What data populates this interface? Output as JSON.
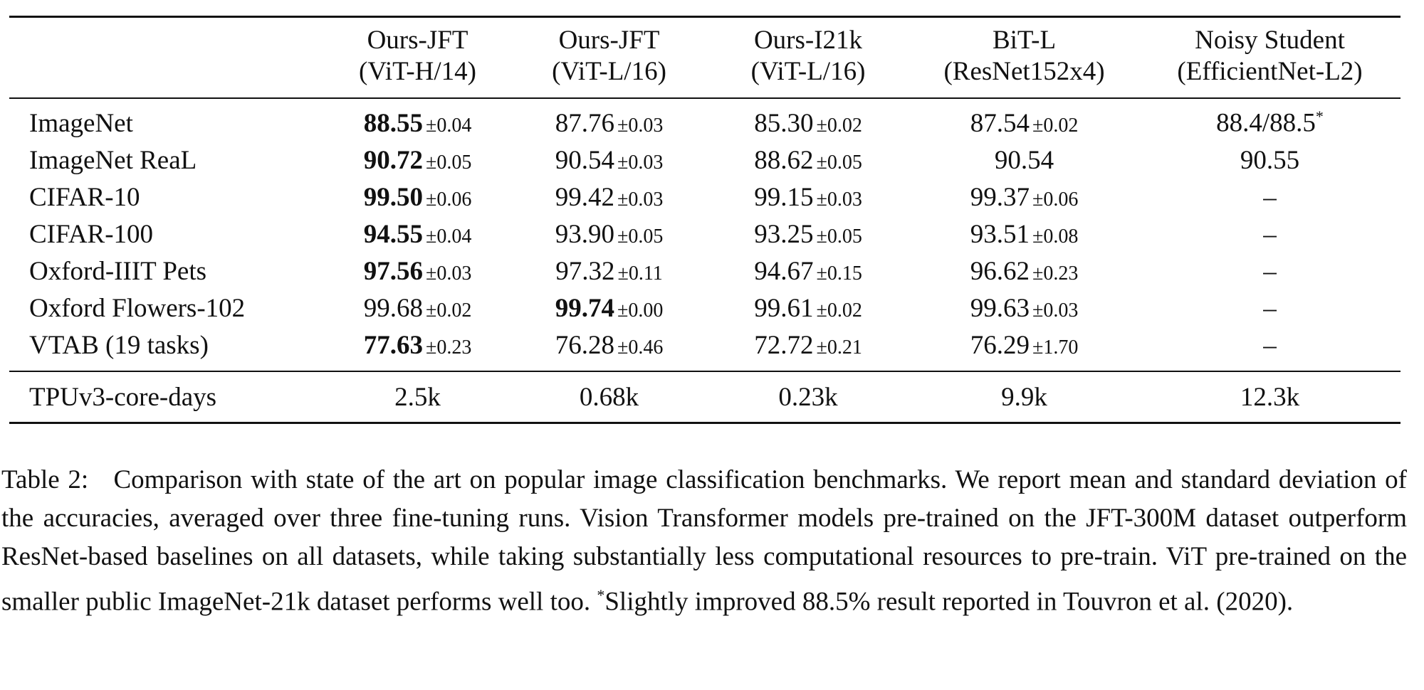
{
  "table": {
    "pm": "±",
    "columns": [
      {
        "line1": "Ours-JFT",
        "line2": "(ViT-H/14)"
      },
      {
        "line1": "Ours-JFT",
        "line2": "(ViT-L/16)"
      },
      {
        "line1": "Ours-I21k",
        "line2": "(ViT-L/16)"
      },
      {
        "line1": "BiT-L",
        "line2": "(ResNet152x4)"
      },
      {
        "line1": "Noisy Student",
        "line2": "(EfficientNet-L2)"
      }
    ],
    "rows": [
      {
        "label": "ImageNet",
        "cells": [
          {
            "mean": "88.55",
            "std": "0.04",
            "bold": true
          },
          {
            "mean": "87.76",
            "std": "0.03"
          },
          {
            "mean": "85.30",
            "std": "0.02"
          },
          {
            "mean": "87.54",
            "std": "0.02"
          },
          {
            "mean": "88.4/88.5",
            "note": "*"
          }
        ]
      },
      {
        "label": "ImageNet ReaL",
        "cells": [
          {
            "mean": "90.72",
            "std": "0.05",
            "bold": true
          },
          {
            "mean": "90.54",
            "std": "0.03"
          },
          {
            "mean": "88.62",
            "std": "0.05"
          },
          {
            "mean": "90.54"
          },
          {
            "mean": "90.55"
          }
        ]
      },
      {
        "label": "CIFAR-10",
        "cells": [
          {
            "mean": "99.50",
            "std": "0.06",
            "bold": true
          },
          {
            "mean": "99.42",
            "std": "0.03"
          },
          {
            "mean": "99.15",
            "std": "0.03"
          },
          {
            "mean": "99.37",
            "std": "0.06"
          },
          {
            "mean": "–"
          }
        ]
      },
      {
        "label": "CIFAR-100",
        "cells": [
          {
            "mean": "94.55",
            "std": "0.04",
            "bold": true
          },
          {
            "mean": "93.90",
            "std": "0.05"
          },
          {
            "mean": "93.25",
            "std": "0.05"
          },
          {
            "mean": "93.51",
            "std": "0.08"
          },
          {
            "mean": "–"
          }
        ]
      },
      {
        "label": "Oxford-IIIT Pets",
        "cells": [
          {
            "mean": "97.56",
            "std": "0.03",
            "bold": true
          },
          {
            "mean": "97.32",
            "std": "0.11"
          },
          {
            "mean": "94.67",
            "std": "0.15"
          },
          {
            "mean": "96.62",
            "std": "0.23"
          },
          {
            "mean": "–"
          }
        ]
      },
      {
        "label": "Oxford Flowers-102",
        "cells": [
          {
            "mean": "99.68",
            "std": "0.02"
          },
          {
            "mean": "99.74",
            "std": "0.00",
            "bold": true
          },
          {
            "mean": "99.61",
            "std": "0.02"
          },
          {
            "mean": "99.63",
            "std": "0.03"
          },
          {
            "mean": "–"
          }
        ]
      },
      {
        "label": "VTAB (19 tasks)",
        "cells": [
          {
            "mean": "77.63",
            "std": "0.23",
            "bold": true
          },
          {
            "mean": "76.28",
            "std": "0.46"
          },
          {
            "mean": "72.72",
            "std": "0.21"
          },
          {
            "mean": "76.29",
            "std": "1.70"
          },
          {
            "mean": "–"
          }
        ]
      }
    ],
    "footer_row": {
      "label": "TPUv3-core-days",
      "cells": [
        "2.5k",
        "0.68k",
        "0.23k",
        "9.9k",
        "12.3k"
      ]
    }
  },
  "caption": {
    "label": "Table 2:",
    "text_a": "Comparison with state of the art on popular image classification benchmarks. We report mean and standard deviation of the accuracies, averaged over three fine-tuning runs. Vision Transformer models pre-trained on the JFT-300M dataset outperform ResNet-based baselines on all datasets, while taking substantially less computational resources to pre-train. ViT pre-trained on the smaller public ImageNet-21k dataset performs well too.",
    "note": "*",
    "text_b": "Slightly improved 88.5% result reported in Touvron et al. (2020)."
  }
}
